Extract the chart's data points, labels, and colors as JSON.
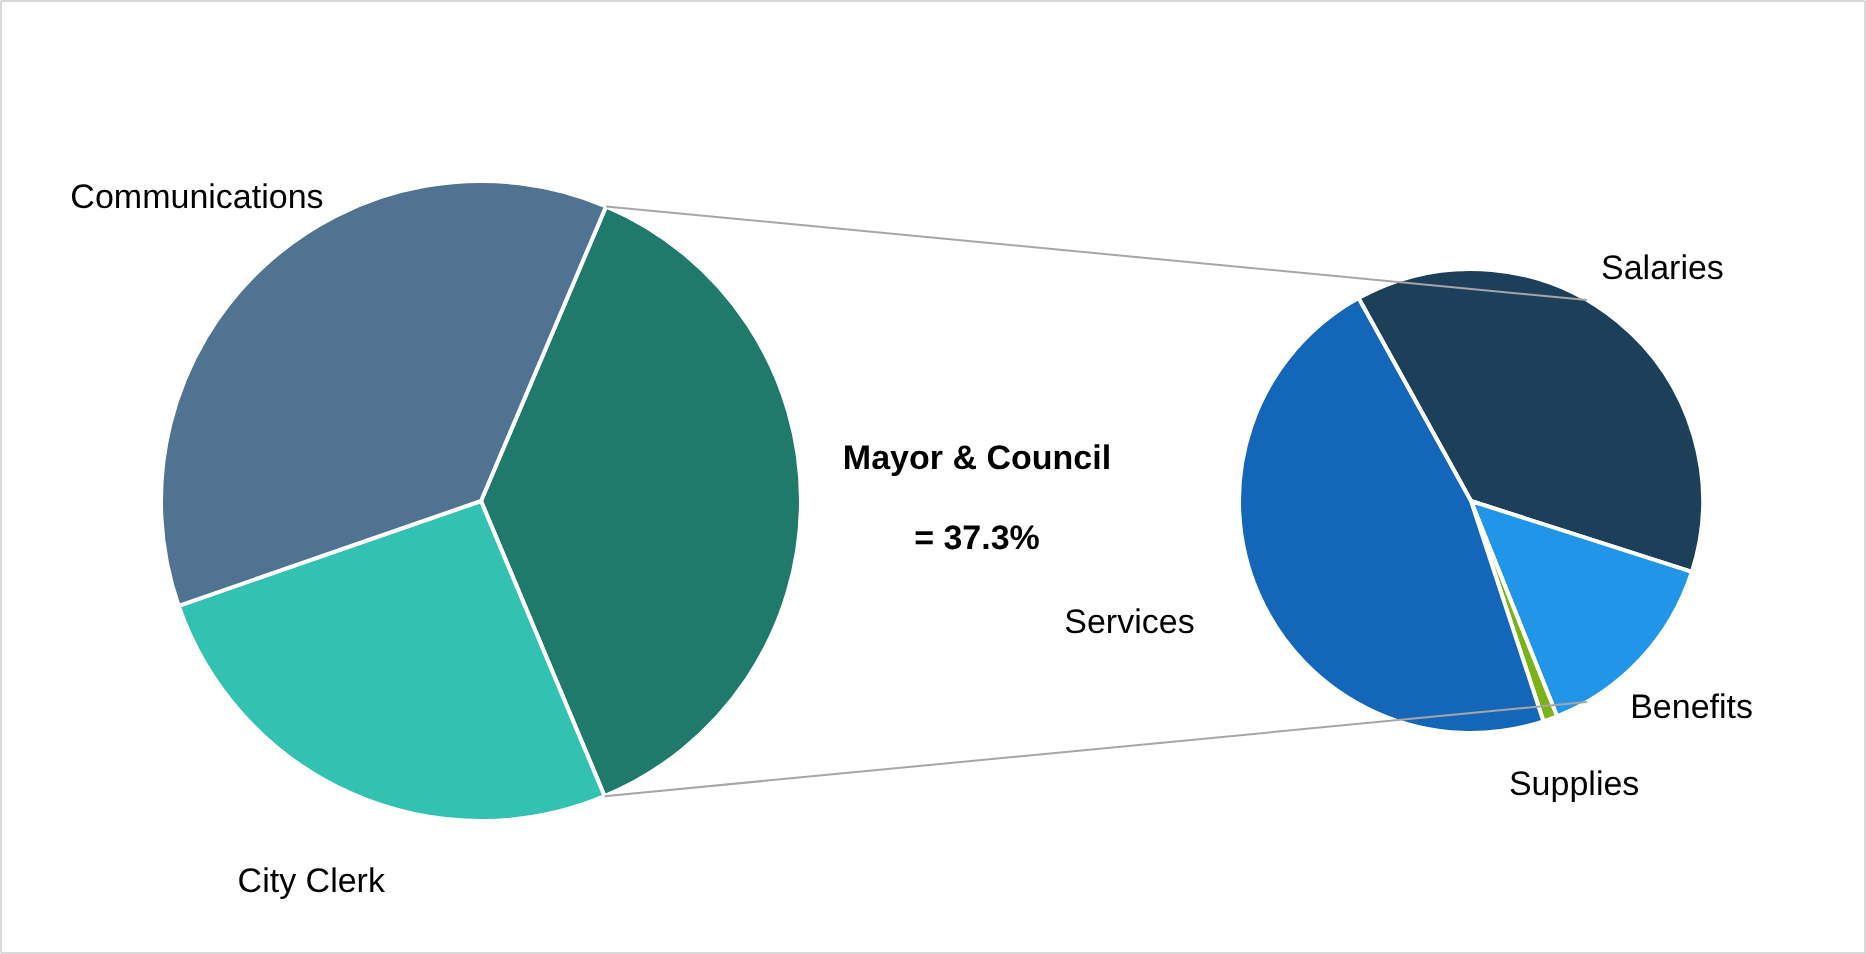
{
  "chart_data": [
    {
      "type": "pie",
      "categories": [
        "Mayor & Council",
        "City Clerk",
        "Communications"
      ],
      "values": [
        37.3,
        26.0,
        36.7
      ],
      "colors": [
        "#1f7a6c",
        "#33c1b1",
        "#4f7390"
      ],
      "value_labels": [
        "= 37.3%",
        null,
        null
      ]
    },
    {
      "type": "pie",
      "categories": [
        "Salaries",
        "Benefits",
        "Supplies",
        "Services"
      ],
      "values": [
        38,
        14,
        1,
        47
      ],
      "colors": [
        "#1c3f5a",
        "#2196e8",
        "#7ab317",
        "#1466b8"
      ]
    }
  ]
}
